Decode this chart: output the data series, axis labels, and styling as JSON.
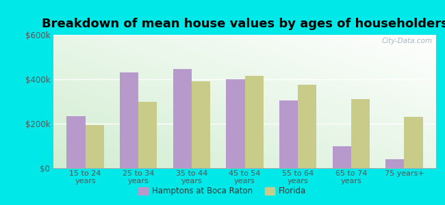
{
  "title": "Breakdown of mean house values by ages of householders",
  "categories": [
    "15 to 24\nyears",
    "25 to 34\nyears",
    "35 to 44\nyears",
    "45 to 54\nyears",
    "55 to 64\nyears",
    "65 to 74\nyears",
    "75 years+"
  ],
  "hamptons_values": [
    235000,
    430000,
    445000,
    400000,
    305000,
    100000,
    40000
  ],
  "florida_values": [
    195000,
    300000,
    390000,
    415000,
    375000,
    310000,
    230000
  ],
  "hamptons_color": "#b899cc",
  "florida_color": "#c8cc88",
  "background_outer": "#00e8e8",
  "ylim": [
    0,
    600000
  ],
  "yticks": [
    0,
    200000,
    400000,
    600000
  ],
  "ytick_labels": [
    "$0",
    "$200k",
    "$400k",
    "$600k"
  ],
  "legend_label_1": "Hamptons at Boca Raton",
  "legend_label_2": "Florida",
  "watermark": "City-Data.com",
  "title_fontsize": 13,
  "bar_width": 0.35
}
